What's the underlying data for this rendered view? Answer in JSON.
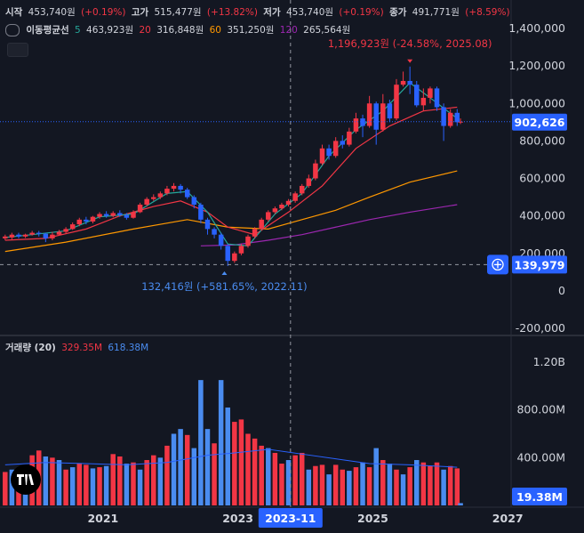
{
  "header": {
    "open_label": "시작",
    "open_value": "453,740원",
    "open_change": "(+0.19%)",
    "high_label": "고가",
    "high_value": "515,477원",
    "high_change": "(+13.82%)",
    "low_label": "저가",
    "low_value": "453,740원",
    "low_change": "(+0.19%)",
    "close_label": "종가",
    "close_value": "491,771원",
    "close_change": "(+8.59%)"
  },
  "ma_legend": {
    "title": "이동평균선",
    "items": [
      {
        "period": "5",
        "value": "463,923원",
        "color": "#26a69a"
      },
      {
        "period": "20",
        "value": "316,848원",
        "color": "#f23645"
      },
      {
        "period": "60",
        "value": "351,250원",
        "color": "#ff9800"
      },
      {
        "period": "120",
        "value": "265,564원",
        "color": "#9c27b0"
      }
    ]
  },
  "volume_legend": {
    "title": "거래량 (20)",
    "v1": "329.35M",
    "v2": "618.38M"
  },
  "colors": {
    "up": "#f23645",
    "down": "#2962ff",
    "vol_up": "#f23645",
    "vol_down": "#4a8cf0"
  },
  "chart_data": {
    "type": "candlestick",
    "x_ticks": [
      "2021",
      "2023",
      "2025",
      "2027"
    ],
    "price_ticks": [
      "1,400,000",
      "1,200,000",
      "1,000,000",
      "800,000",
      "600,000",
      "400,000",
      "200,000",
      "0",
      "-200,000"
    ],
    "volume_ticks": [
      "1.20B",
      "800.00M",
      "400.00M"
    ],
    "ylim": [
      -200000,
      1400000
    ],
    "high_annotation": "1,196,923원 (-24.58%, 2025.08)",
    "low_annotation": "132,416원 (+581.65%, 2022.11)",
    "current_price": "902,626",
    "crosshair_price": "139,979",
    "crosshair_date": "2023-11",
    "volume_current": "19.38M",
    "high_point": {
      "t": 2025.6,
      "v": 1196923
    },
    "low_point": {
      "t": 2022.85,
      "v": 132416
    },
    "current_value": 902626,
    "crosshair_value": 139979,
    "crosshair_t": 2023.83,
    "candles": [
      [
        2019.6,
        280000,
        290000,
        270000,
        300000,
        1
      ],
      [
        2019.7,
        285000,
        300000,
        275000,
        310000,
        1
      ],
      [
        2019.8,
        300000,
        290000,
        280000,
        310000,
        0
      ],
      [
        2019.9,
        290000,
        300000,
        282000,
        305000,
        1
      ],
      [
        2020.0,
        300000,
        310000,
        295000,
        320000,
        1
      ],
      [
        2020.1,
        310000,
        305000,
        290000,
        320000,
        0
      ],
      [
        2020.2,
        305000,
        280000,
        260000,
        310000,
        0
      ],
      [
        2020.3,
        280000,
        300000,
        270000,
        315000,
        1
      ],
      [
        2020.4,
        300000,
        315000,
        295000,
        325000,
        1
      ],
      [
        2020.5,
        315000,
        330000,
        305000,
        340000,
        1
      ],
      [
        2020.6,
        330000,
        355000,
        325000,
        365000,
        1
      ],
      [
        2020.7,
        355000,
        380000,
        345000,
        390000,
        1
      ],
      [
        2020.8,
        380000,
        370000,
        355000,
        395000,
        0
      ],
      [
        2020.9,
        370000,
        395000,
        360000,
        400000,
        1
      ],
      [
        2021.0,
        395000,
        410000,
        385000,
        420000,
        1
      ],
      [
        2021.1,
        410000,
        400000,
        390000,
        425000,
        0
      ],
      [
        2021.2,
        400000,
        415000,
        392000,
        425000,
        1
      ],
      [
        2021.3,
        415000,
        405000,
        395000,
        430000,
        0
      ],
      [
        2021.4,
        405000,
        390000,
        380000,
        415000,
        0
      ],
      [
        2021.5,
        390000,
        420000,
        385000,
        430000,
        1
      ],
      [
        2021.6,
        420000,
        460000,
        415000,
        470000,
        1
      ],
      [
        2021.7,
        460000,
        490000,
        450000,
        500000,
        1
      ],
      [
        2021.8,
        490000,
        500000,
        480000,
        515000,
        1
      ],
      [
        2021.9,
        500000,
        520000,
        490000,
        530000,
        1
      ],
      [
        2022.0,
        520000,
        545000,
        510000,
        560000,
        1
      ],
      [
        2022.1,
        545000,
        560000,
        530000,
        575000,
        1
      ],
      [
        2022.2,
        560000,
        540000,
        520000,
        570000,
        0
      ],
      [
        2022.3,
        540000,
        500000,
        490000,
        550000,
        0
      ],
      [
        2022.4,
        500000,
        460000,
        440000,
        510000,
        0
      ],
      [
        2022.5,
        460000,
        380000,
        360000,
        470000,
        0
      ],
      [
        2022.6,
        380000,
        330000,
        300000,
        390000,
        0
      ],
      [
        2022.7,
        330000,
        300000,
        280000,
        340000,
        0
      ],
      [
        2022.8,
        300000,
        240000,
        220000,
        310000,
        0
      ],
      [
        2022.9,
        240000,
        160000,
        132416,
        250000,
        0
      ],
      [
        2023.0,
        160000,
        200000,
        150000,
        210000,
        1
      ],
      [
        2023.1,
        200000,
        240000,
        190000,
        250000,
        1
      ],
      [
        2023.2,
        240000,
        290000,
        230000,
        300000,
        1
      ],
      [
        2023.3,
        290000,
        330000,
        280000,
        340000,
        1
      ],
      [
        2023.4,
        330000,
        380000,
        320000,
        390000,
        1
      ],
      [
        2023.5,
        380000,
        420000,
        370000,
        430000,
        1
      ],
      [
        2023.6,
        420000,
        440000,
        410000,
        450000,
        1
      ],
      [
        2023.7,
        440000,
        460000,
        430000,
        470000,
        1
      ],
      [
        2023.8,
        460000,
        480000,
        450000,
        490000,
        1
      ],
      [
        2023.9,
        480000,
        520000,
        470000,
        530000,
        1
      ],
      [
        2024.0,
        520000,
        560000,
        510000,
        570000,
        1
      ],
      [
        2024.1,
        560000,
        600000,
        550000,
        620000,
        1
      ],
      [
        2024.2,
        600000,
        680000,
        590000,
        700000,
        1
      ],
      [
        2024.3,
        680000,
        760000,
        670000,
        780000,
        1
      ],
      [
        2024.4,
        760000,
        720000,
        700000,
        780000,
        0
      ],
      [
        2024.5,
        720000,
        800000,
        710000,
        820000,
        1
      ],
      [
        2024.6,
        800000,
        780000,
        760000,
        830000,
        0
      ],
      [
        2024.7,
        780000,
        850000,
        770000,
        870000,
        1
      ],
      [
        2024.8,
        850000,
        920000,
        840000,
        950000,
        1
      ],
      [
        2024.9,
        920000,
        880000,
        820000,
        940000,
        0
      ],
      [
        2025.0,
        880000,
        1000000,
        870000,
        1040000,
        1
      ],
      [
        2025.1,
        1000000,
        860000,
        780000,
        1010000,
        0
      ],
      [
        2025.2,
        860000,
        1000000,
        850000,
        1050000,
        1
      ],
      [
        2025.3,
        1000000,
        920000,
        900000,
        1020000,
        0
      ],
      [
        2025.4,
        920000,
        1100000,
        910000,
        1130000,
        1
      ],
      [
        2025.5,
        1100000,
        1120000,
        1090000,
        1170000,
        1
      ],
      [
        2025.6,
        1120000,
        1100000,
        1050000,
        1196923,
        0
      ],
      [
        2025.7,
        1100000,
        990000,
        980000,
        1120000,
        0
      ],
      [
        2025.8,
        990000,
        1030000,
        960000,
        1080000,
        1
      ],
      [
        2025.9,
        1030000,
        1080000,
        1000000,
        1090000,
        1
      ],
      [
        2026.0,
        1080000,
        980000,
        960000,
        1090000,
        0
      ],
      [
        2026.1,
        980000,
        880000,
        800000,
        1000000,
        0
      ],
      [
        2026.2,
        880000,
        950000,
        870000,
        970000,
        1
      ],
      [
        2026.3,
        950000,
        900000,
        880000,
        970000,
        0
      ],
      [
        2026.35,
        900000,
        902626,
        890000,
        920000,
        1
      ]
    ],
    "ma5": [
      [
        2019.6,
        285000
      ],
      [
        2020.0,
        300000
      ],
      [
        2020.5,
        320000
      ],
      [
        2021.0,
        395000
      ],
      [
        2021.5,
        410000
      ],
      [
        2022.0,
        520000
      ],
      [
        2022.3,
        530000
      ],
      [
        2022.6,
        420000
      ],
      [
        2022.9,
        250000
      ],
      [
        2023.2,
        240000
      ],
      [
        2023.6,
        410000
      ],
      [
        2024.0,
        520000
      ],
      [
        2024.4,
        720000
      ],
      [
        2024.8,
        860000
      ],
      [
        2025.2,
        960000
      ],
      [
        2025.6,
        1110000
      ],
      [
        2025.9,
        1030000
      ],
      [
        2026.3,
        920000
      ]
    ],
    "ma20": [
      [
        2019.6,
        270000
      ],
      [
        2020.2,
        280000
      ],
      [
        2020.8,
        330000
      ],
      [
        2021.3,
        400000
      ],
      [
        2021.8,
        450000
      ],
      [
        2022.2,
        480000
      ],
      [
        2022.6,
        420000
      ],
      [
        2022.9,
        340000
      ],
      [
        2023.3,
        300000
      ],
      [
        2023.8,
        420000
      ],
      [
        2024.3,
        560000
      ],
      [
        2024.8,
        760000
      ],
      [
        2025.3,
        880000
      ],
      [
        2025.8,
        960000
      ],
      [
        2026.3,
        980000
      ]
    ],
    "ma60": [
      [
        2019.6,
        210000
      ],
      [
        2020.5,
        260000
      ],
      [
        2021.5,
        330000
      ],
      [
        2022.3,
        380000
      ],
      [
        2022.9,
        340000
      ],
      [
        2023.5,
        330000
      ],
      [
        2024.0,
        380000
      ],
      [
        2024.5,
        430000
      ],
      [
        2025.0,
        500000
      ],
      [
        2025.6,
        580000
      ],
      [
        2026.3,
        640000
      ]
    ],
    "ma120": [
      [
        2022.5,
        240000
      ],
      [
        2023.0,
        245000
      ],
      [
        2023.5,
        270000
      ],
      [
        2024.0,
        300000
      ],
      [
        2024.5,
        340000
      ],
      [
        2025.0,
        380000
      ],
      [
        2025.6,
        420000
      ],
      [
        2026.3,
        460000
      ]
    ],
    "volume_ma": [
      [
        2019.6,
        340000000
      ],
      [
        2020.2,
        360000000
      ],
      [
        2020.8,
        350000000
      ],
      [
        2021.4,
        340000000
      ],
      [
        2022.0,
        360000000
      ],
      [
        2022.6,
        420000000
      ],
      [
        2023.0,
        440000000
      ],
      [
        2023.5,
        470000000
      ],
      [
        2024.0,
        430000000
      ],
      [
        2024.5,
        390000000
      ],
      [
        2025.0,
        350000000
      ],
      [
        2025.6,
        340000000
      ],
      [
        2026.3,
        320000000
      ]
    ],
    "volumes": [
      [
        2019.6,
        280000000,
        1
      ],
      [
        2019.7,
        300000000,
        0
      ],
      [
        2019.8,
        310000000,
        1
      ],
      [
        2019.9,
        300000000,
        0
      ],
      [
        2020.0,
        420000000,
        1
      ],
      [
        2020.1,
        460000000,
        1
      ],
      [
        2020.2,
        410000000,
        0
      ],
      [
        2020.3,
        400000000,
        1
      ],
      [
        2020.4,
        380000000,
        0
      ],
      [
        2020.5,
        300000000,
        1
      ],
      [
        2020.6,
        320000000,
        0
      ],
      [
        2020.7,
        350000000,
        1
      ],
      [
        2020.8,
        340000000,
        1
      ],
      [
        2020.9,
        310000000,
        0
      ],
      [
        2021.0,
        320000000,
        1
      ],
      [
        2021.1,
        330000000,
        0
      ],
      [
        2021.2,
        430000000,
        1
      ],
      [
        2021.3,
        410000000,
        1
      ],
      [
        2021.4,
        350000000,
        0
      ],
      [
        2021.5,
        360000000,
        1
      ],
      [
        2021.6,
        300000000,
        0
      ],
      [
        2021.7,
        380000000,
        1
      ],
      [
        2021.8,
        420000000,
        1
      ],
      [
        2021.9,
        400000000,
        0
      ],
      [
        2022.0,
        500000000,
        1
      ],
      [
        2022.1,
        600000000,
        0
      ],
      [
        2022.2,
        640000000,
        0
      ],
      [
        2022.3,
        590000000,
        1
      ],
      [
        2022.4,
        480000000,
        0
      ],
      [
        2022.5,
        1050000000,
        0
      ],
      [
        2022.6,
        640000000,
        0
      ],
      [
        2022.7,
        520000000,
        1
      ],
      [
        2022.8,
        1050000000,
        0
      ],
      [
        2022.9,
        820000000,
        0
      ],
      [
        2023.0,
        700000000,
        1
      ],
      [
        2023.1,
        720000000,
        1
      ],
      [
        2023.2,
        600000000,
        1
      ],
      [
        2023.3,
        560000000,
        1
      ],
      [
        2023.4,
        500000000,
        1
      ],
      [
        2023.5,
        480000000,
        0
      ],
      [
        2023.6,
        440000000,
        1
      ],
      [
        2023.7,
        350000000,
        1
      ],
      [
        2023.8,
        380000000,
        0
      ],
      [
        2023.9,
        420000000,
        1
      ],
      [
        2024.0,
        440000000,
        1
      ],
      [
        2024.1,
        300000000,
        0
      ],
      [
        2024.2,
        330000000,
        1
      ],
      [
        2024.3,
        340000000,
        1
      ],
      [
        2024.4,
        260000000,
        0
      ],
      [
        2024.5,
        340000000,
        1
      ],
      [
        2024.6,
        300000000,
        1
      ],
      [
        2024.7,
        290000000,
        0
      ],
      [
        2024.8,
        320000000,
        1
      ],
      [
        2024.9,
        360000000,
        0
      ],
      [
        2025.0,
        320000000,
        1
      ],
      [
        2025.1,
        480000000,
        0
      ],
      [
        2025.2,
        380000000,
        1
      ],
      [
        2025.3,
        350000000,
        0
      ],
      [
        2025.4,
        300000000,
        1
      ],
      [
        2025.5,
        260000000,
        0
      ],
      [
        2025.6,
        320000000,
        1
      ],
      [
        2025.7,
        380000000,
        0
      ],
      [
        2025.8,
        360000000,
        1
      ],
      [
        2025.9,
        330000000,
        1
      ],
      [
        2026.0,
        360000000,
        1
      ],
      [
        2026.1,
        300000000,
        0
      ],
      [
        2026.2,
        330000000,
        1
      ],
      [
        2026.3,
        310000000,
        1
      ],
      [
        2026.35,
        19380000,
        0
      ]
    ]
  }
}
